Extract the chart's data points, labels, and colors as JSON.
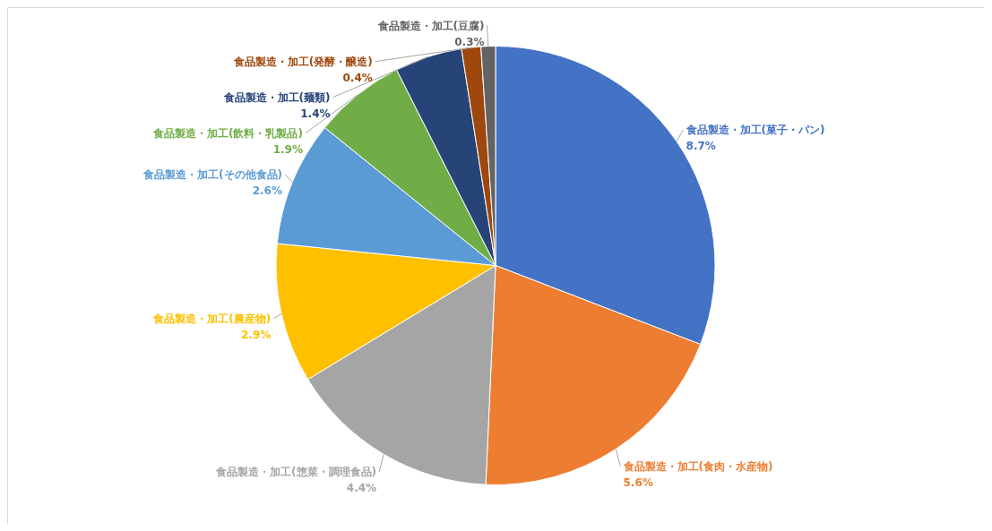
{
  "chart_data": {
    "type": "pie",
    "categories": [
      "食品製造・加工(菓子・パン)",
      "食品製造・加工(食肉・水産物)",
      "食品製造・加工(惣菜・調理食品)",
      "食品製造・加工(農産物)",
      "食品製造・加工(その他食品)",
      "食品製造・加工(飲料・乳製品)",
      "食品製造・加工(麺類)",
      "食品製造・加工(発酵・醸造)",
      "食品製造・加工(豆腐)"
    ],
    "values": [
      8.7,
      5.6,
      4.4,
      2.9,
      2.6,
      1.9,
      1.4,
      0.4,
      0.3
    ],
    "colors": [
      "#4472c4",
      "#ed7d31",
      "#a5a5a5",
      "#ffc000",
      "#5b9bd5",
      "#70ad47",
      "#264478",
      "#9e480e",
      "#636363"
    ],
    "value_labels": [
      "8.7%",
      "5.6%",
      "4.4%",
      "2.9%",
      "2.6%",
      "1.9%",
      "1.4%",
      "0.4%",
      "0.3%"
    ]
  }
}
